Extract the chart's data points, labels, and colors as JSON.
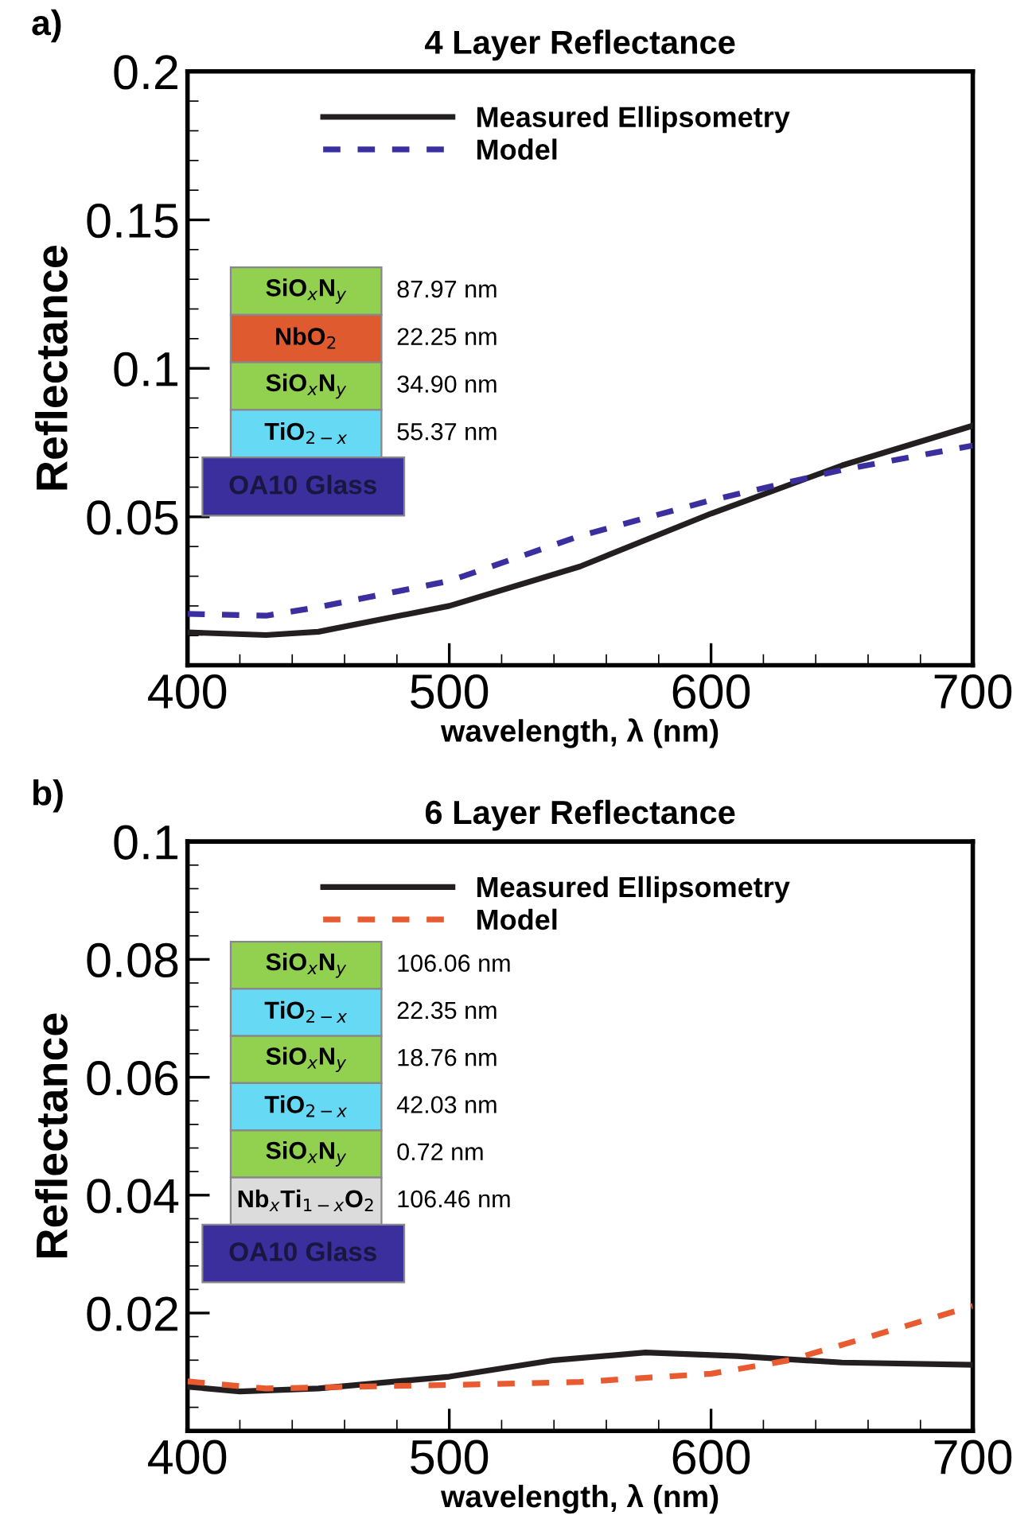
{
  "chart_data": [
    {
      "type": "line",
      "title": "4 Layer Reflectance",
      "xlabel": "wavelength, λ (nm)",
      "ylabel": "Reflectance",
      "x": [
        400,
        430,
        450,
        500,
        550,
        600,
        650,
        700
      ],
      "xlim": [
        400,
        700
      ],
      "xticks": [
        400,
        500,
        600,
        700
      ],
      "ylim": [
        0,
        0.2
      ],
      "yticks": [
        0.05,
        0.1,
        0.15,
        0.2
      ],
      "grid": false,
      "legend": "top",
      "marker": "none",
      "series": [
        {
          "name": "Measured Ellipsometry",
          "color": "#231f20",
          "line_style": "solid",
          "values": [
            0.0111,
            0.0102,
            0.0113,
            0.02,
            0.0333,
            0.0511,
            0.0673,
            0.0807
          ]
        },
        {
          "name": "Model",
          "color": "#3b2fa0",
          "line_style": "dashed",
          "values": [
            0.0173,
            0.0167,
            0.0196,
            0.0284,
            0.0436,
            0.0556,
            0.0658,
            0.074
          ]
        }
      ],
      "annotations": [
        "a)",
        "SiO$_{x}$N$_{y}$",
        "87.97 nm",
        "NbO$_{2}$",
        "22.25 nm",
        "SiO$_{x}$N$_{y}$",
        "34.90 nm",
        "TiO$_{2−x}$",
        "55.37 nm",
        "OA10 Glass"
      ]
    },
    {
      "type": "line",
      "title": "6 Layer Reflectance",
      "xlabel": "wavelength, λ (nm)",
      "ylabel": "Reflectance",
      "x": [
        400,
        420,
        450,
        500,
        540,
        575,
        610,
        650,
        700
      ],
      "xlim": [
        400,
        700
      ],
      "xticks": [
        400,
        500,
        600,
        700
      ],
      "ylim": [
        0,
        0.1
      ],
      "yticks": [
        0.02,
        0.04,
        0.06,
        0.08,
        0.1
      ],
      "grid": false,
      "legend": "top",
      "marker": "none",
      "series": [
        {
          "name": "Measured Ellipsometry",
          "color": "#231f20",
          "line_style": "solid",
          "values": [
            0.0075,
            0.0067,
            0.0072,
            0.0092,
            0.012,
            0.0133,
            0.0127,
            0.0116,
            0.0112
          ]
        },
        {
          "name": "Model",
          "color": "#e85a30",
          "line_style": "dashed",
          "x": [
            400,
            430,
            500,
            550,
            600,
            630,
            660,
            700
          ],
          "values": [
            0.0084,
            0.0072,
            0.0078,
            0.0083,
            0.0097,
            0.012,
            0.0159,
            0.0212
          ]
        }
      ],
      "annotations": [
        "b)",
        "SiO$_{x}$N$_{y}$",
        "106.06 nm",
        "TiO$_{2−x}$",
        "22.35 nm",
        "SiO$_{x}$N$_{y}$",
        "18.76 nm",
        "TiO$_{2−x}$",
        "42.03 nm",
        "SiO$_{x}$N$_{y}$",
        "0.72 nm",
        "Nb$_{x}$Ti$_{1−x}$O$_{2}$",
        "106.46 nm",
        "OA10 Glass"
      ]
    }
  ]
}
